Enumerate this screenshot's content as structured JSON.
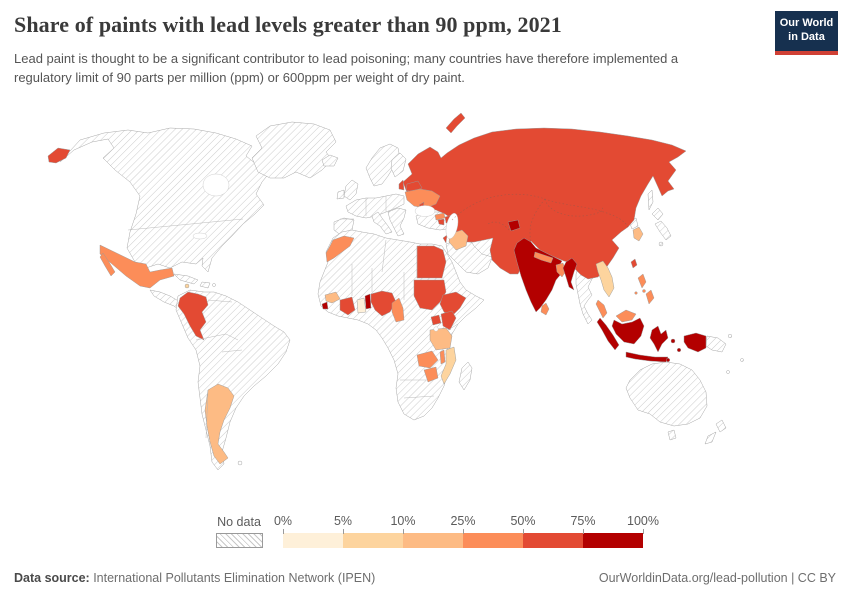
{
  "header": {
    "title": "Share of paints with lead levels greater than 90 ppm, 2021",
    "subtitle": "Lead paint is thought to be a significant contributor to lead poisoning; many countries have therefore implemented a regulatory limit of 90 parts per million (ppm) or 600ppm per weight of dry paint.",
    "logo": {
      "line1": "Our World",
      "line2": "in Data",
      "bg_color": "#16304f",
      "accent_color": "#d04035"
    }
  },
  "legend": {
    "no_data_label": "No data",
    "tick_labels": [
      "0%",
      "5%",
      "10%",
      "25%",
      "50%",
      "75%",
      "100%"
    ],
    "bins": [
      "0-5%",
      "5-10%",
      "10-25%",
      "25-50%",
      "50-75%",
      "75-100%"
    ],
    "band_colors": [
      "#fef0d9",
      "#fdd49e",
      "#fdbb84",
      "#fc8d59",
      "#e34a33",
      "#b30000"
    ]
  },
  "footer": {
    "source_label": "Data source:",
    "source_text": " International Pollutants Elimination Network (IPEN)",
    "right_text": "OurWorldinData.org/lead-pollution | CC BY"
  },
  "chart_data": {
    "type": "choropleth",
    "title": "Share of paints with lead levels greater than 90 ppm",
    "year": "2021",
    "unit": "% of analyzed paints with lead > 90 ppm",
    "no_data_style": "white with gray diagonal hatching",
    "legend_position": "bottom",
    "countries": [
      {
        "name": "Russia",
        "range": "50-75%"
      },
      {
        "name": "China",
        "range": "50-75%"
      },
      {
        "name": "Kazakhstan",
        "range": "50-75%"
      },
      {
        "name": "Mongolia",
        "range": "50-75%"
      },
      {
        "name": "Uzbekistan",
        "range": "50-75%"
      },
      {
        "name": "Turkmenistan",
        "range": "50-75%"
      },
      {
        "name": "Kyrgyzstan",
        "range": "50-75%"
      },
      {
        "name": "Afghanistan",
        "range": "50-75%"
      },
      {
        "name": "Pakistan",
        "range": "50-75%"
      },
      {
        "name": "Tajikistan",
        "range": "75-100%"
      },
      {
        "name": "India",
        "range": "75-100%"
      },
      {
        "name": "Myanmar",
        "range": "75-100%"
      },
      {
        "name": "Indonesia",
        "range": "75-100%"
      },
      {
        "name": "Benin",
        "range": "75-100%"
      },
      {
        "name": "Sierra Leone",
        "range": "75-100%"
      },
      {
        "name": "Nepal",
        "range": "25-50%"
      },
      {
        "name": "Bangladesh",
        "range": "25-50%"
      },
      {
        "name": "Sri Lanka",
        "range": "25-50%"
      },
      {
        "name": "Philippines",
        "range": "25-50%"
      },
      {
        "name": "Malaysia",
        "range": "25-50%"
      },
      {
        "name": "Mexico",
        "range": "25-50%"
      },
      {
        "name": "Morocco",
        "range": "25-50%"
      },
      {
        "name": "Ukraine",
        "range": "25-50%"
      },
      {
        "name": "Georgia",
        "range": "25-50%"
      },
      {
        "name": "Cameroon",
        "range": "25-50%"
      },
      {
        "name": "Zambia",
        "range": "25-50%"
      },
      {
        "name": "Zimbabwe",
        "range": "25-50%"
      },
      {
        "name": "Malawi",
        "range": "25-50%"
      },
      {
        "name": "Colombia",
        "range": "50-75%"
      },
      {
        "name": "Belarus",
        "range": "50-75%"
      },
      {
        "name": "Latvia",
        "range": "50-75%"
      },
      {
        "name": "Moldova",
        "range": "50-75%"
      },
      {
        "name": "Azerbaijan",
        "range": "50-75%"
      },
      {
        "name": "Armenia",
        "range": "50-75%"
      },
      {
        "name": "Lebanon",
        "range": "50-75%"
      },
      {
        "name": "Egypt",
        "range": "50-75%"
      },
      {
        "name": "Sudan",
        "range": "50-75%"
      },
      {
        "name": "Ethiopia",
        "range": "50-75%"
      },
      {
        "name": "Kenya",
        "range": "50-75%"
      },
      {
        "name": "Uganda",
        "range": "50-75%"
      },
      {
        "name": "Nigeria",
        "range": "50-75%"
      },
      {
        "name": "Cote d'Ivoire",
        "range": "50-75%"
      },
      {
        "name": "Taiwan",
        "range": "50-75%"
      },
      {
        "name": "South Korea",
        "range": "10-25%"
      },
      {
        "name": "Iraq",
        "range": "10-25%"
      },
      {
        "name": "Tanzania",
        "range": "10-25%"
      },
      {
        "name": "Guinea",
        "range": "10-25%"
      },
      {
        "name": "Argentina",
        "range": "10-25%"
      },
      {
        "name": "Vietnam",
        "range": "5-10%"
      },
      {
        "name": "Mozambique",
        "range": "5-10%"
      },
      {
        "name": "Jamaica",
        "range": "5-10%"
      },
      {
        "name": "Ghana",
        "range": "0-5%"
      }
    ]
  }
}
